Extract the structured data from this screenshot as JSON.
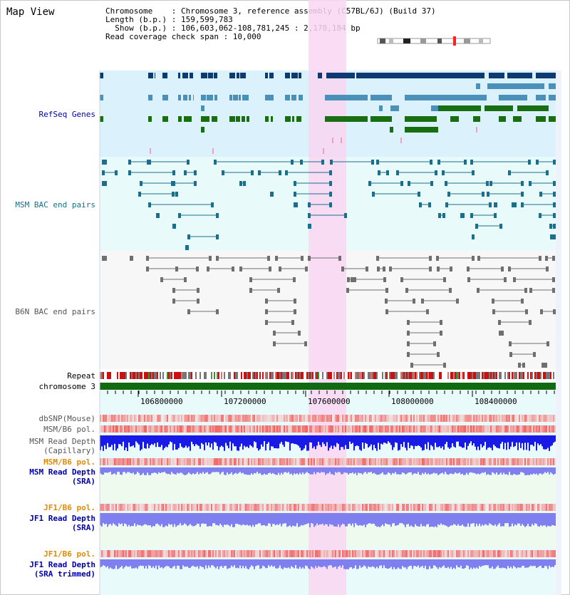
{
  "header": {
    "title": "Map View",
    "chromosome_line": "Chromosome    : Chromosome 3, reference assembly (C57BL/6J) (Build 37)",
    "length_line": "Length (b.p.) : 159,599,783",
    "show_line": "  Show (b.p.) : 106,603,062-108,781,245 : 2,178,184 bp",
    "coverage_line": "Read coverage check span : 10,000"
  },
  "tracks": {
    "refseq": "RefSeq Genes",
    "msm_bac": "MSM BAC end pairs",
    "b6n_bac": "B6N BAC end pairs",
    "repeat": "Repeat",
    "chromosome": "chromosome 3",
    "dbsnp": "dbSNP(Mouse)",
    "msm_b6_pol_1": "MSM/B6 pol.",
    "msm_depth_cap_1": "MSM Read Depth",
    "msm_depth_cap_2": "(Capillary)",
    "msm_b6_pol_2": "MSM/B6 pol.",
    "msm_depth_sra_1": "MSM Read Depth",
    "msm_depth_sra_2": "(SRA)",
    "jf1_b6_pol_1": "JF1/B6 pol.",
    "jf1_depth_sra_1": "JF1 Read Depth",
    "jf1_depth_sra_2": "(SRA)",
    "jf1_b6_pol_2": "JF1/B6 pol.",
    "jf1_depth_trim_1": "JF1 Read Depth",
    "jf1_depth_trim_2": "(SRA trimmed)"
  },
  "axis": {
    "ticks": [
      "106800000",
      "107200000",
      "107600000",
      "108000000",
      "108400000"
    ]
  },
  "colors": {
    "refseq_bg": "#dbf1fb",
    "msm_bg": "#e8fafa",
    "highlight": "#f9d6f2",
    "gene_dark": "#0d3a70",
    "gene_mid": "#4a90b8",
    "gene_green": "#1a6e12",
    "msm_pair": "#1b6f8e",
    "b6n_pair": "#6f6f6f",
    "chrom_bar": "#0f6a12",
    "depth_capillary": "#1a1ae6",
    "depth_sra": "#7f7ff0",
    "label_blue": "#0000aa",
    "label_orange": "#e38a00",
    "label_teal": "#166f8a"
  }
}
